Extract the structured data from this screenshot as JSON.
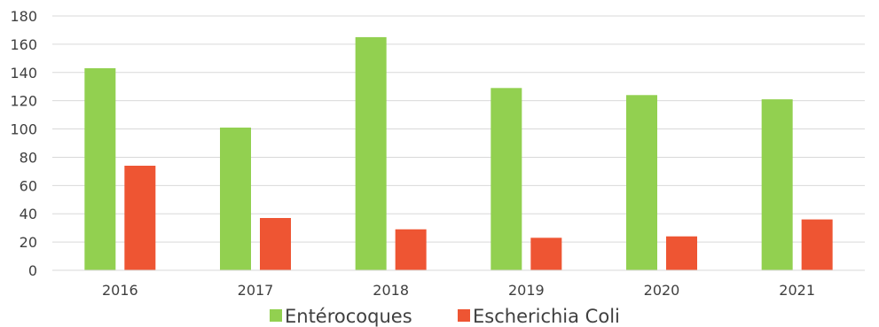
{
  "chart_data": {
    "type": "bar",
    "categories": [
      "2016",
      "2017",
      "2018",
      "2019",
      "2020",
      "2021"
    ],
    "series": [
      {
        "name": "Entérocoques",
        "color": "#92d050",
        "values": [
          143,
          101,
          165,
          129,
          124,
          121
        ]
      },
      {
        "name": "Escherichia Coli",
        "color": "#ee5533",
        "values": [
          74,
          37,
          29,
          23,
          24,
          36
        ]
      }
    ],
    "title": "",
    "xlabel": "",
    "ylabel": "",
    "ylim": [
      0,
      180
    ],
    "yticks": [
      0,
      20,
      40,
      60,
      80,
      100,
      120,
      140,
      160,
      180
    ],
    "grid": true,
    "legend_position": "bottom"
  }
}
